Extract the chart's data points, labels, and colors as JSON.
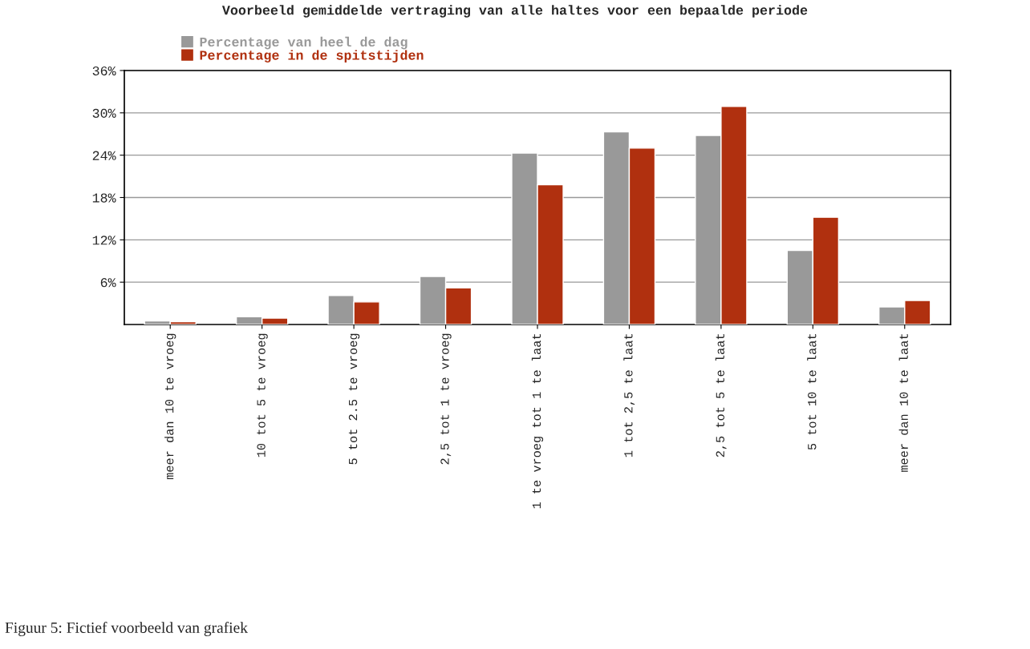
{
  "chart_data": {
    "type": "bar",
    "title": "Voorbeeld gemiddelde vertraging van alle haltes voor een bepaalde periode",
    "categories": [
      "meer dan 10 te vroeg",
      "10 tot 5 te vroeg",
      "5 tot 2.5 te vroeg",
      "2,5 tot 1 te vroeg",
      "1 te vroeg tot 1 te laat",
      "1 tot 2,5 te laat",
      "2,5 tot 5 te laat",
      "5 tot 10 te laat",
      "meer dan 10 te laat"
    ],
    "series": [
      {
        "name": "Percentage van heel de dag",
        "color": "#999999",
        "values": [
          0.5,
          1.1,
          4.1,
          6.8,
          24.3,
          27.3,
          26.8,
          10.5,
          2.5
        ]
      },
      {
        "name": "Percentage in de spitstijden",
        "color": "#b0300f",
        "values": [
          0.4,
          0.9,
          3.2,
          5.2,
          19.8,
          25.0,
          30.9,
          15.2,
          3.4
        ]
      }
    ],
    "ylim": [
      0,
      36
    ],
    "yticks": [
      {
        "value": 6,
        "label": "6%"
      },
      {
        "value": 12,
        "label": "12%"
      },
      {
        "value": 18,
        "label": "18%"
      },
      {
        "value": 24,
        "label": "24%"
      },
      {
        "value": 30,
        "label": "30%"
      },
      {
        "value": 36,
        "label": "36%"
      }
    ],
    "grid": "y",
    "legend": "top left",
    "annotations": [
      "Figuur 5: Fictief voorbeeld van grafiek"
    ]
  }
}
